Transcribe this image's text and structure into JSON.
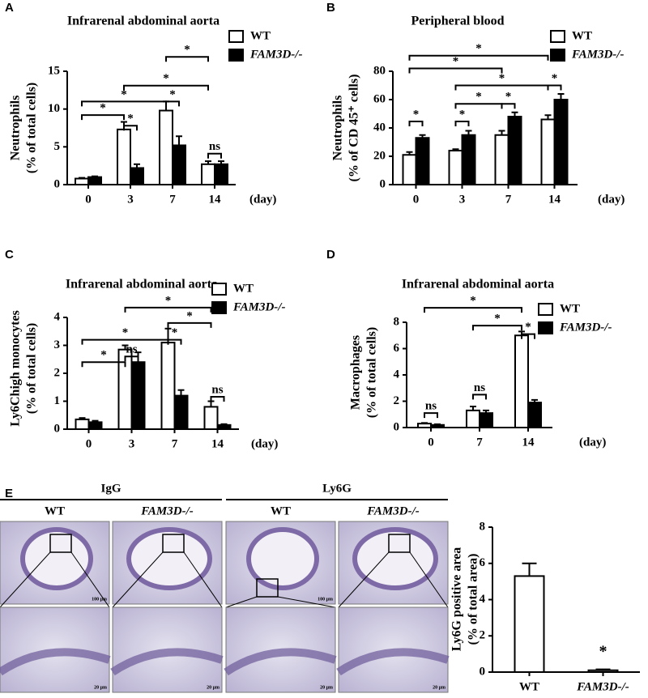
{
  "chart_data": [
    {
      "type": "bar",
      "panel_label": "A",
      "title": "Infrarenal abdominal aorta",
      "y_label": [
        "Neutrophils",
        "(% of total cells)"
      ],
      "x_unit_label": "(day)",
      "categories": [
        "0",
        "3",
        "7",
        "14"
      ],
      "ylim": [
        0,
        15
      ],
      "yticks": [
        0,
        5,
        10,
        15
      ],
      "legend": true,
      "series": [
        {
          "name": "WT",
          "color": "#ffffff",
          "values": [
            0.8,
            7.3,
            9.8,
            2.7
          ],
          "errors": [
            0.1,
            1.0,
            1.2,
            0.4
          ]
        },
        {
          "name": "FAM3D-/-",
          "color": "#000000",
          "values": [
            1.0,
            2.2,
            5.2,
            2.7
          ],
          "errors": [
            0.1,
            0.5,
            1.2,
            0.4
          ]
        }
      ],
      "brackets": [
        {
          "label": "*",
          "from": [
            0,
            0
          ],
          "to": [
            1,
            0
          ],
          "y": 9.2
        },
        {
          "label": "*",
          "from": [
            1,
            0
          ],
          "to": [
            1,
            1
          ],
          "y": 7.8
        },
        {
          "label": "*",
          "from": [
            0,
            0
          ],
          "to": [
            2,
            0
          ],
          "y": 11
        },
        {
          "label": "*",
          "from": [
            2,
            0
          ],
          "to": [
            2,
            1
          ],
          "y": 11
        },
        {
          "label": "*",
          "from": [
            1,
            0
          ],
          "to": [
            3,
            0
          ],
          "y": 13.1
        },
        {
          "label": "*",
          "from": [
            2,
            0
          ],
          "to": [
            3,
            0
          ],
          "y": 16.9
        },
        {
          "label": "ns",
          "from": [
            3,
            0
          ],
          "to": [
            3,
            1
          ],
          "y": 4.1
        }
      ]
    },
    {
      "type": "bar",
      "panel_label": "B",
      "title": "Peripheral blood",
      "y_label": [
        "Neutrophils",
        "(% of CD 45⁺ cells)"
      ],
      "x_unit_label": "(day)",
      "categories": [
        "0",
        "3",
        "7",
        "14"
      ],
      "ylim": [
        0,
        80
      ],
      "yticks": [
        0,
        20,
        40,
        60,
        80
      ],
      "legend": true,
      "series": [
        {
          "name": "WT",
          "color": "#ffffff",
          "values": [
            21,
            24,
            35,
            46
          ],
          "errors": [
            2,
            1,
            3,
            3
          ]
        },
        {
          "name": "FAM3D-/-",
          "color": "#000000",
          "values": [
            33,
            35,
            48,
            60
          ],
          "errors": [
            2,
            3,
            3,
            4
          ]
        }
      ],
      "brackets": [
        {
          "label": "*",
          "from": [
            0,
            0
          ],
          "to": [
            0,
            1
          ],
          "y": 44.6
        },
        {
          "label": "*",
          "from": [
            1,
            0
          ],
          "to": [
            1,
            1
          ],
          "y": 44.6
        },
        {
          "label": "*",
          "from": [
            1,
            0
          ],
          "to": [
            2,
            0
          ],
          "y": 57
        },
        {
          "label": "*",
          "from": [
            2,
            0
          ],
          "to": [
            2,
            1
          ],
          "y": 57
        },
        {
          "label": "*",
          "from": [
            1,
            0
          ],
          "to": [
            3,
            0
          ],
          "y": 70
        },
        {
          "label": "*",
          "from": [
            3,
            0
          ],
          "to": [
            3,
            1
          ],
          "y": 70
        },
        {
          "label": "*",
          "from": [
            0,
            0
          ],
          "to": [
            2,
            0
          ],
          "y": 82
        },
        {
          "label": "*",
          "from": [
            0,
            0
          ],
          "to": [
            3,
            0
          ],
          "y": 91
        }
      ]
    },
    {
      "type": "bar",
      "panel_label": "C",
      "title": "Infrarenal abdominal aorta",
      "y_label": [
        "Ly6Chigh monocytes",
        "(% of total cells)"
      ],
      "x_unit_label": "(day)",
      "categories": [
        "0",
        "3",
        "7",
        "14"
      ],
      "ylim": [
        0,
        4
      ],
      "yticks": [
        0,
        1,
        2,
        3,
        4
      ],
      "legend": true,
      "series": [
        {
          "name": "WT",
          "color": "#ffffff",
          "values": [
            0.35,
            2.85,
            3.1,
            0.8
          ],
          "errors": [
            0.05,
            0.15,
            0.5,
            0.2
          ]
        },
        {
          "name": "FAM3D-/-",
          "color": "#000000",
          "values": [
            0.25,
            2.4,
            1.2,
            0.15
          ],
          "errors": [
            0.05,
            0.35,
            0.2,
            0.03
          ]
        }
      ],
      "brackets": [
        {
          "label": "*",
          "from": [
            0,
            0
          ],
          "to": [
            1,
            0
          ],
          "y": 2.4
        },
        {
          "label": "ns",
          "from": [
            1,
            0
          ],
          "to": [
            1,
            1
          ],
          "y": 2.6
        },
        {
          "label": "*",
          "from": [
            0,
            0
          ],
          "to": [
            2,
            0
          ],
          "y": 3.2
        },
        {
          "label": "*",
          "from": [
            2,
            0
          ],
          "to": [
            2,
            1
          ],
          "y": 3.2
        },
        {
          "label": "*",
          "from": [
            2,
            0
          ],
          "to": [
            3,
            0
          ],
          "y": 3.8
        },
        {
          "label": "*",
          "from": [
            1,
            0
          ],
          "to": [
            3,
            0
          ],
          "y": 4.35
        },
        {
          "label": "ns",
          "from": [
            3,
            0
          ],
          "to": [
            3,
            1
          ],
          "y": 1.16
        }
      ]
    },
    {
      "type": "bar",
      "panel_label": "D",
      "title": "Infrarenal abdominal aorta",
      "y_label": [
        "Macrophages",
        "(% of total cells)"
      ],
      "x_unit_label": "(day)",
      "categories": [
        "0",
        "7",
        "14"
      ],
      "ylim": [
        0,
        8
      ],
      "yticks": [
        0,
        2,
        4,
        6,
        8
      ],
      "legend": true,
      "series": [
        {
          "name": "WT",
          "color": "#ffffff",
          "values": [
            0.3,
            1.3,
            7.0
          ],
          "errors": [
            0.05,
            0.3,
            0.3
          ]
        },
        {
          "name": "FAM3D-/-",
          "color": "#000000",
          "values": [
            0.2,
            1.1,
            1.9
          ],
          "errors": [
            0.05,
            0.2,
            0.2
          ]
        }
      ],
      "brackets": [
        {
          "label": "ns",
          "from": [
            0,
            0
          ],
          "to": [
            0,
            1
          ],
          "y": 1.1
        },
        {
          "label": "ns",
          "from": [
            1,
            0
          ],
          "to": [
            1,
            1
          ],
          "y": 2.5
        },
        {
          "label": "*",
          "from": [
            2,
            0
          ],
          "to": [
            2,
            1
          ],
          "y": 7.1
        },
        {
          "label": "*",
          "from": [
            1,
            0
          ],
          "to": [
            2,
            0
          ],
          "y": 7.75
        },
        {
          "label": "*",
          "from": [
            0,
            0
          ],
          "to": [
            2,
            0
          ],
          "y": 9.1
        }
      ]
    },
    {
      "type": "bar",
      "panel_label": "E",
      "y_label": [
        "Ly6G positive area",
        "(% of total area)"
      ],
      "categories": [
        "WT",
        "FAM3D-/-"
      ],
      "ylim": [
        0,
        8
      ],
      "yticks": [
        0,
        2,
        4,
        6,
        8
      ],
      "legend": false,
      "series": [
        {
          "color": "#ffffff",
          "values": [
            5.3,
            0.1
          ],
          "errors": [
            0.7,
            0.05
          ]
        }
      ],
      "annotations": [
        {
          "label": "*",
          "at": [
            1,
            0
          ],
          "y": 0.9
        }
      ]
    }
  ],
  "panel_e_images": {
    "groups": [
      {
        "label": "IgG",
        "columns": [
          "WT",
          "FAM3D-/-"
        ]
      },
      {
        "label": "Ly6G",
        "columns": [
          "WT",
          "FAM3D-/-"
        ]
      }
    ],
    "scale_top": "100 μm",
    "scale_bottom": "20 μm"
  }
}
